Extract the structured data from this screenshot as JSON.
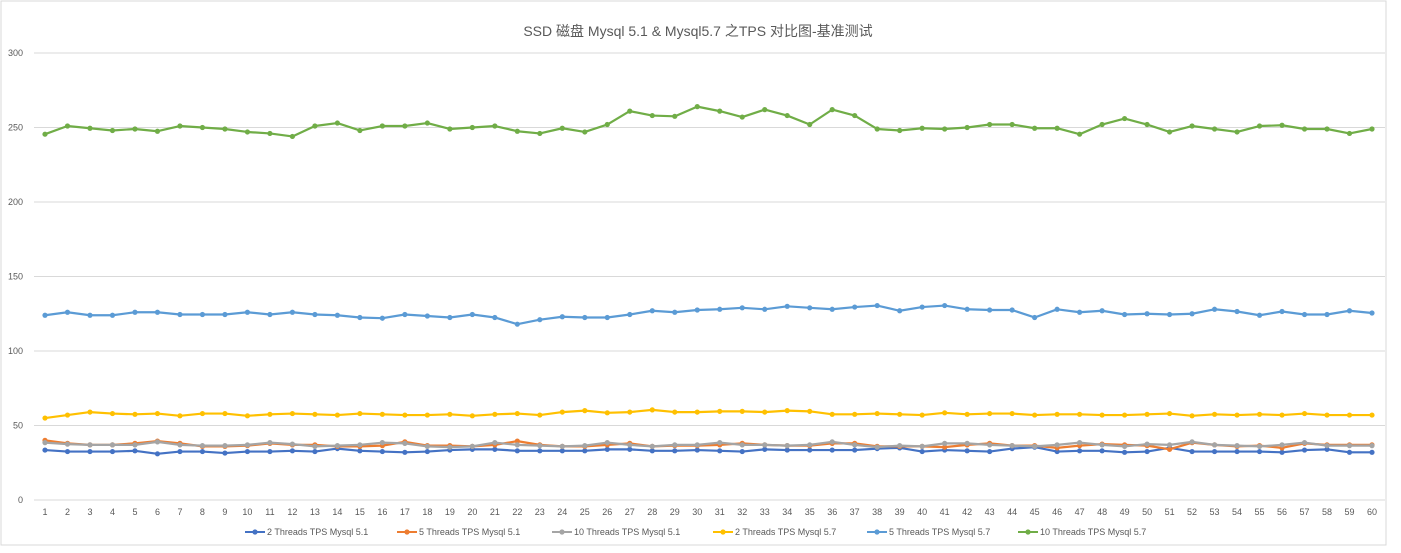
{
  "chart_data": {
    "type": "line",
    "title": "SSD 磁盘 Mysql 5.1  &  Mysql5.7 之TPS 对比图-基准测试",
    "xlabel": "",
    "ylabel": "",
    "ylim": [
      0,
      300
    ],
    "yticks": [
      0,
      50,
      100,
      150,
      200,
      250,
      300
    ],
    "grid": true,
    "legend_position": "bottom",
    "x": [
      1,
      2,
      3,
      4,
      5,
      6,
      7,
      8,
      9,
      10,
      11,
      12,
      13,
      14,
      15,
      16,
      17,
      18,
      19,
      20,
      21,
      22,
      23,
      24,
      25,
      26,
      27,
      28,
      29,
      30,
      31,
      32,
      33,
      34,
      35,
      36,
      37,
      38,
      39,
      40,
      41,
      42,
      43,
      44,
      45,
      46,
      47,
      48,
      49,
      50,
      51,
      52,
      53,
      54,
      55,
      56,
      57,
      58,
      59,
      60
    ],
    "series": [
      {
        "name": "2 Threads TPS Mysql 5.1",
        "color": "#4472C4",
        "values": [
          33.5,
          32.5,
          32.5,
          32.5,
          33,
          31,
          32.5,
          32.5,
          31.5,
          32.5,
          32.5,
          33,
          32.5,
          34.5,
          33,
          32.5,
          32,
          32.5,
          33.5,
          34,
          34,
          33,
          33,
          33,
          33,
          34,
          34,
          33,
          33,
          33.5,
          33,
          32.5,
          34,
          33.5,
          33.5,
          33.5,
          33.5,
          34.5,
          35,
          32.5,
          33.5,
          33,
          32.5,
          34.5,
          35.5,
          32.5,
          33,
          33,
          32,
          32.5,
          35,
          32.5,
          32.5,
          32.5,
          32.5,
          32,
          33.5,
          34,
          32,
          32
        ]
      },
      {
        "name": "5 Threads TPS Mysql 5.1",
        "color": "#ED7D31",
        "values": [
          40,
          38,
          37,
          37,
          38,
          39.5,
          38,
          36,
          36,
          36.5,
          38,
          37,
          37,
          36,
          36,
          36.5,
          39,
          36.5,
          36.5,
          36,
          37,
          39.5,
          37,
          36,
          36,
          37,
          38,
          36,
          36.5,
          36.5,
          37,
          38,
          37,
          36.5,
          36.5,
          38,
          38,
          36,
          36,
          36,
          35.5,
          37,
          38,
          36.5,
          36.5,
          35,
          36.5,
          37.5,
          37,
          36.5,
          34,
          38.5,
          37,
          36,
          36.5,
          35,
          38,
          37,
          37,
          37
        ]
      },
      {
        "name": "10 Threads TPS Mysql 5.1",
        "color": "#A5A5A5",
        "values": [
          38.5,
          37.5,
          37,
          37,
          37,
          39,
          37,
          36.5,
          36.5,
          37,
          38.5,
          37.5,
          36,
          36.5,
          37,
          38.5,
          38,
          36,
          35.5,
          36,
          38.5,
          37,
          36.5,
          36,
          36.5,
          38.5,
          37,
          36,
          37,
          37,
          38.5,
          37,
          37,
          36.5,
          37,
          39,
          37,
          35.5,
          36.5,
          36,
          38,
          38,
          37,
          36.5,
          36,
          37,
          38.5,
          37,
          36,
          37.5,
          37,
          39,
          37,
          36.5,
          36,
          37,
          38.5,
          36.5,
          36.5,
          36.5
        ]
      },
      {
        "name": "2 Threads TPS Mysql 5.7",
        "color": "#FFC000",
        "values": [
          55,
          57,
          59,
          58,
          57.5,
          58,
          56.5,
          58,
          58,
          56.5,
          57.5,
          58,
          57.5,
          57,
          58,
          57.5,
          57,
          57,
          57.5,
          56.5,
          57.5,
          58,
          57,
          59,
          60,
          58.5,
          59,
          60.5,
          59,
          59,
          59.5,
          59.5,
          59,
          60,
          59.5,
          57.5,
          57.5,
          58,
          57.5,
          57,
          58.5,
          57.5,
          58,
          58,
          57,
          57.5,
          57.5,
          57,
          57,
          57.5,
          58,
          56.5,
          57.5,
          57,
          57.5,
          57,
          58,
          57,
          57,
          57
        ]
      },
      {
        "name": "5 Threads TPS Mysql 5.7",
        "color": "#5B9BD5",
        "values": [
          124,
          126,
          124,
          124,
          126,
          126,
          124.5,
          124.5,
          124.5,
          126,
          124.5,
          126,
          124.5,
          124,
          122.5,
          122,
          124.5,
          123.5,
          122.5,
          124.5,
          122.5,
          118,
          121,
          123,
          122.5,
          122.5,
          124.5,
          127,
          126,
          127.5,
          128,
          129,
          128,
          130,
          129,
          128,
          129.5,
          130.5,
          127,
          129.5,
          130.5,
          128,
          127.5,
          127.5,
          122.5,
          128,
          126,
          127,
          124.5,
          125,
          124.5,
          125,
          128,
          126.5,
          124,
          126.5,
          124.5,
          124.5,
          127,
          125.5
        ]
      },
      {
        "name": "10 Threads TPS Mysql 5.7",
        "color": "#70AD47",
        "values": [
          245.5,
          251,
          249.5,
          248,
          249,
          247.5,
          251,
          250,
          249,
          247,
          246,
          244,
          251,
          253,
          248,
          251,
          251,
          253,
          249,
          250,
          251,
          247.5,
          246,
          249.5,
          247,
          252,
          261,
          258,
          257.5,
          264,
          261,
          257,
          262,
          258,
          252,
          262,
          258,
          249,
          248,
          249.5,
          249,
          250,
          252,
          252,
          249.5,
          249.5,
          245.5,
          252,
          256,
          252,
          247,
          251,
          249,
          247,
          251,
          251.5,
          249,
          249,
          246,
          249
        ]
      }
    ]
  }
}
